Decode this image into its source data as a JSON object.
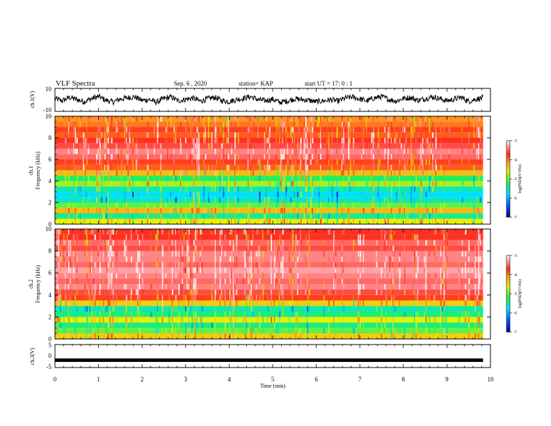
{
  "header": {
    "title": "VLF Spectra",
    "date": "Sep. 6  , 2020",
    "station": "station= KAP",
    "start_time": "start  UT =   17: 0  : 1"
  },
  "chart_data": [
    {
      "id": "ch1-waveform",
      "type": "line",
      "ylabel": "ch.1(V)",
      "ylim": [
        -10,
        10
      ],
      "yticks": [
        "10",
        "-10"
      ],
      "series": [
        {
          "values": [
            1.2,
            -0.8,
            2.1,
            0.4,
            -1.5,
            0.9,
            3.0,
            -0.3,
            -1.8,
            0.7,
            1.9,
            2.6,
            -0.5,
            0.3,
            -2.0,
            1.1,
            2.4,
            -0.9,
            0.5,
            1.7,
            -1.2,
            0.8,
            2.2,
            -0.6,
            -1.4,
            0.2,
            1.4,
            2.8,
            0.1,
            -0.7,
            0.6,
            -2.2,
            -1.0,
            0.9,
            0.3,
            -0.4,
            -1.6,
            -0.9,
            0.2,
            -1.1,
            1.5,
            2.5,
            0.8,
            -0.9,
            1.6,
            2.9,
            0.4,
            -1.0,
            1.2,
            2.0,
            -0.4,
            0.9,
            2.7,
            1.1,
            -0.8,
            0.5,
            2.3,
            -1.3,
            0.6,
            1.8
          ]
        }
      ]
    },
    {
      "id": "ch1-spectrogram",
      "type": "heatmap",
      "ylabel": "Frequency (kHz)",
      "channel_label": "ch.1",
      "ylim": [
        0,
        10
      ],
      "yticks": [
        "0",
        "2",
        "4",
        "6",
        "8",
        "10"
      ],
      "freq_bins_khz": [
        0.25,
        0.75,
        1.25,
        1.75,
        2.25,
        2.75,
        3.25,
        3.75,
        4.25,
        4.75,
        5.25,
        5.75,
        6.25,
        6.75,
        7.25,
        7.75,
        8.25,
        8.75,
        9.25,
        9.75
      ],
      "log_psd_by_bin": [
        -4.6,
        -5.4,
        -4.3,
        -5.0,
        -5.6,
        -5.8,
        -5.5,
        -4.8,
        -5.2,
        -4.3,
        -3.9,
        -3.8,
        -3.5,
        -3.4,
        -3.6,
        -3.7,
        -3.9,
        -3.8,
        -4.0,
        -4.1
      ],
      "colorbar": {
        "label": "log(PSD)(V²/Hz)",
        "range": [
          -7,
          -3
        ],
        "ticks": [
          "-3",
          "-4",
          "-5",
          "-6",
          "-7"
        ]
      }
    },
    {
      "id": "ch2-spectrogram",
      "type": "heatmap",
      "ylabel": "Frequency (kHz)",
      "channel_label": "ch.2",
      "ylim": [
        0,
        10
      ],
      "yticks": [
        "0",
        "2",
        "4",
        "6",
        "8",
        "10"
      ],
      "freq_bins_khz": [
        0.25,
        0.75,
        1.25,
        1.75,
        2.25,
        2.75,
        3.25,
        3.75,
        4.25,
        4.75,
        5.25,
        5.75,
        6.25,
        6.75,
        7.25,
        7.75,
        8.25,
        8.75,
        9.25,
        9.75
      ],
      "log_psd_by_bin": [
        -4.4,
        -5.0,
        -5.3,
        -4.6,
        -5.3,
        -5.5,
        -4.4,
        -3.8,
        -3.6,
        -3.4,
        -3.5,
        -3.4,
        -3.3,
        -3.5,
        -3.4,
        -3.4,
        -3.6,
        -3.5,
        -3.7,
        -3.7
      ],
      "colorbar": {
        "label": "log(PSD)(V²/Hz)",
        "range": [
          -7,
          -3
        ],
        "ticks": [
          "-3",
          "-4",
          "-5",
          "-6",
          "-7"
        ]
      }
    },
    {
      "id": "ch3-waveform",
      "type": "line",
      "ylabel": "ch.3(V)",
      "ylim": [
        -5,
        5
      ],
      "yticks": [
        "5",
        "0",
        "-5"
      ],
      "series": [
        {
          "values": [
            -1.8,
            -1.8,
            -1.8,
            -1.8,
            -1.8,
            -1.8,
            -1.8,
            -1.8,
            -1.8,
            -1.8
          ]
        }
      ]
    }
  ],
  "x_axis": {
    "label": "Time (min)",
    "xlim": [
      0,
      10
    ],
    "data_end": 9.83,
    "ticks": [
      "0",
      "1",
      "2",
      "3",
      "4",
      "5",
      "6",
      "7",
      "8",
      "9",
      "10"
    ]
  }
}
